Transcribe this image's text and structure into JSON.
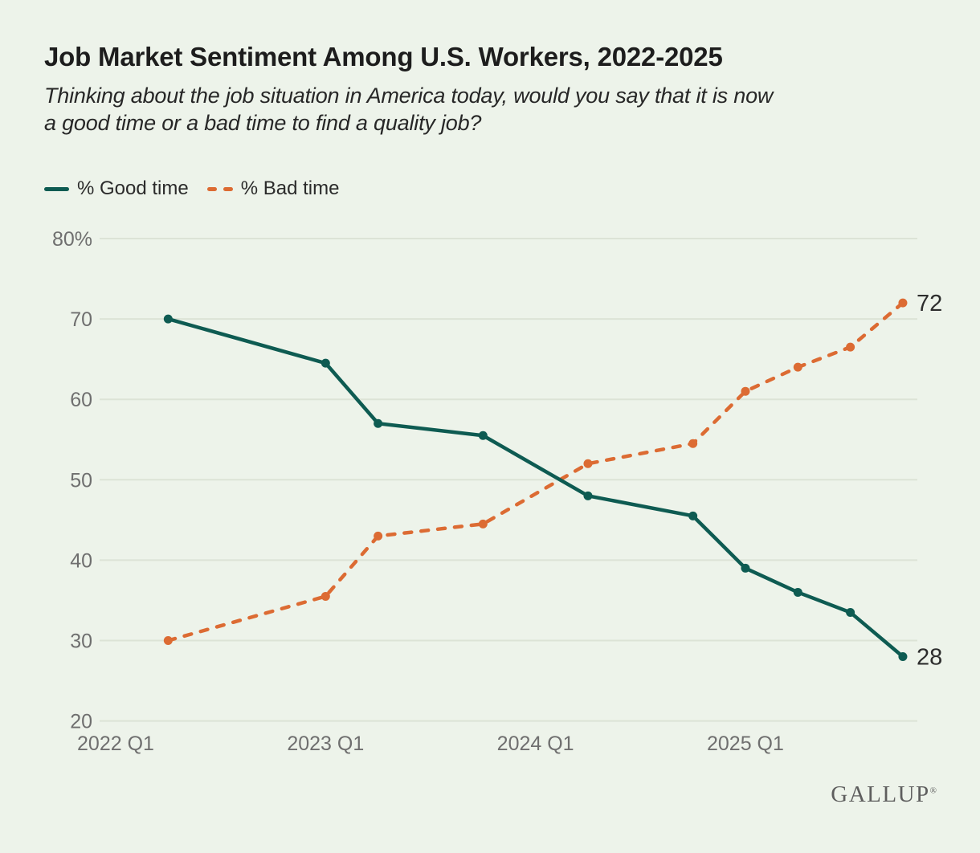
{
  "page": {
    "background_color": "#edf3ea",
    "title": "Job Market Sentiment Among U.S. Workers, 2022-2025",
    "subtitle_lines": [
      "Thinking about the job situation in America today, would you say that it is now",
      "a good time or a bad time to find a quality job?"
    ],
    "brand": "GALLUP",
    "brand_registered": "®"
  },
  "colors": {
    "background": "#edf3ea",
    "good_time": "#0e5b52",
    "bad_time": "#dc6b33",
    "grid": "#dce3d6",
    "axis_text": "#6f6f6f",
    "title_text": "#1d1d1d",
    "end_label_text": "#2d2d2d",
    "brand_text": "#5e5e5e"
  },
  "legend": {
    "items": [
      {
        "key": "good-time",
        "label": "% Good time",
        "style": "solid"
      },
      {
        "key": "bad-time",
        "label": "% Bad time",
        "style": "dashed"
      }
    ]
  },
  "chart_data": {
    "type": "line",
    "title": "Job Market Sentiment Among U.S. Workers, 2022-2025",
    "subtitle": "Thinking about the job situation in America today, would you say that it is now a good time or a bad time to find a quality job?",
    "grid": "horizontal",
    "legend_position": "top-left",
    "x_axis": {
      "unit": "quarter index from 2022 Q1",
      "ticks": [
        {
          "label": "2022 Q1",
          "q": 0
        },
        {
          "label": "2023 Q1",
          "q": 4
        },
        {
          "label": "2024 Q1",
          "q": 8
        },
        {
          "label": "2025 Q1",
          "q": 12
        }
      ],
      "range_quarters": [
        0,
        15
      ]
    },
    "y_axis": {
      "range": [
        20,
        80
      ],
      "ticks": [
        {
          "label": "80%",
          "value": 80
        },
        {
          "label": "70",
          "value": 70
        },
        {
          "label": "60",
          "value": 60
        },
        {
          "label": "50",
          "value": 50
        },
        {
          "label": "40",
          "value": 40
        },
        {
          "label": "30",
          "value": 30
        },
        {
          "label": "20",
          "value": 20
        }
      ]
    },
    "categories": [
      "2022 Q2",
      "2023 Q1",
      "2023 Q2",
      "2023 Q4",
      "2024 Q2",
      "2024 Q4",
      "2025 Q1",
      "2025 Q2",
      "2025 Q3",
      "2025 Q4"
    ],
    "quarter_index": [
      1,
      4,
      5,
      7,
      9,
      11,
      12,
      13,
      14,
      15
    ],
    "series": [
      {
        "key": "good-time",
        "name": "% Good time",
        "dashed": false,
        "values": [
          70,
          64.5,
          57,
          55.5,
          48,
          45.5,
          39,
          36,
          33.5,
          28
        ],
        "end_label": "28"
      },
      {
        "key": "bad-time",
        "name": "% Bad time",
        "dashed": true,
        "values": [
          30,
          35.5,
          43,
          44.5,
          52,
          54.5,
          61,
          64,
          66.5,
          72
        ],
        "end_label": "72"
      }
    ]
  }
}
